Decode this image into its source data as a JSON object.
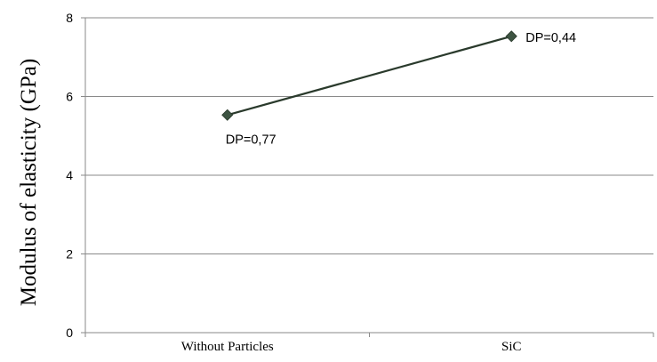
{
  "chart_data": {
    "type": "line",
    "categories": [
      "Without Particles",
      "SiC"
    ],
    "series": [
      {
        "values": [
          5.53,
          7.53
        ]
      }
    ],
    "data_labels": [
      "DP=0,77",
      "DP=0,44"
    ],
    "ylabel": "Modulus of elasticity (GPa)",
    "xlabel": "",
    "ylim": [
      0,
      8
    ],
    "yticks": [
      "0",
      "2",
      "4",
      "6",
      "8"
    ],
    "grid": true,
    "legend": "none",
    "colors": {
      "line": "#2a3a2c",
      "marker": "#3d5442",
      "grid": "#8a8a8a",
      "axis": "#8a8a8a"
    }
  }
}
